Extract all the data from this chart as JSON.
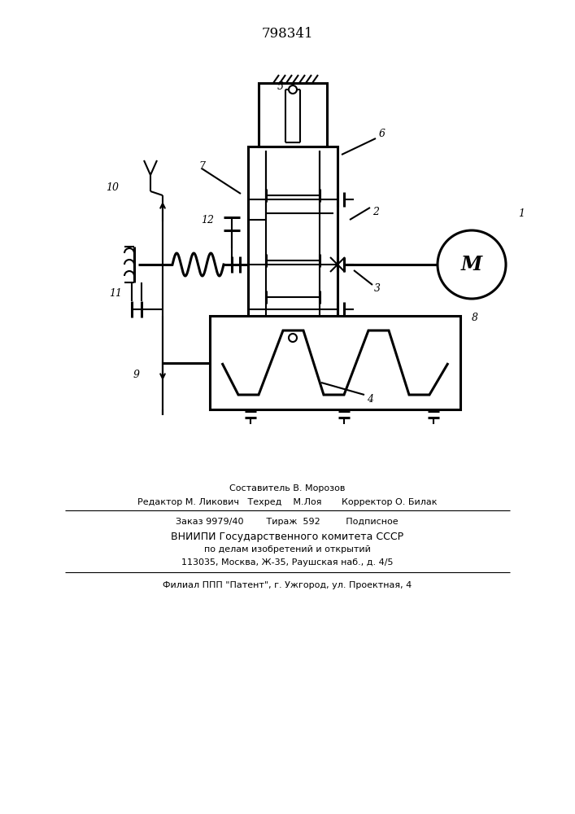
{
  "patent_number": "798341",
  "bg_color": "#ffffff",
  "line_color": "#000000",
  "lw": 1.5,
  "lw_thick": 2.2,
  "footer_lines": [
    "Составитель В. Морозов",
    "Редактор М. Ликович   Техред    М.Лоя       Корректор О. Билак",
    "Заказ 9979/40        Тираж  592         Подписное",
    "ВНИИПИ Государственного комитета СССР",
    "по делам изобретений и открытий",
    "113035, Москва, Ж-35, Раушская наб., д. 4/5",
    "Филиал ППП \"Патент\", г. Ужгород, ул. Проектная, 4"
  ]
}
